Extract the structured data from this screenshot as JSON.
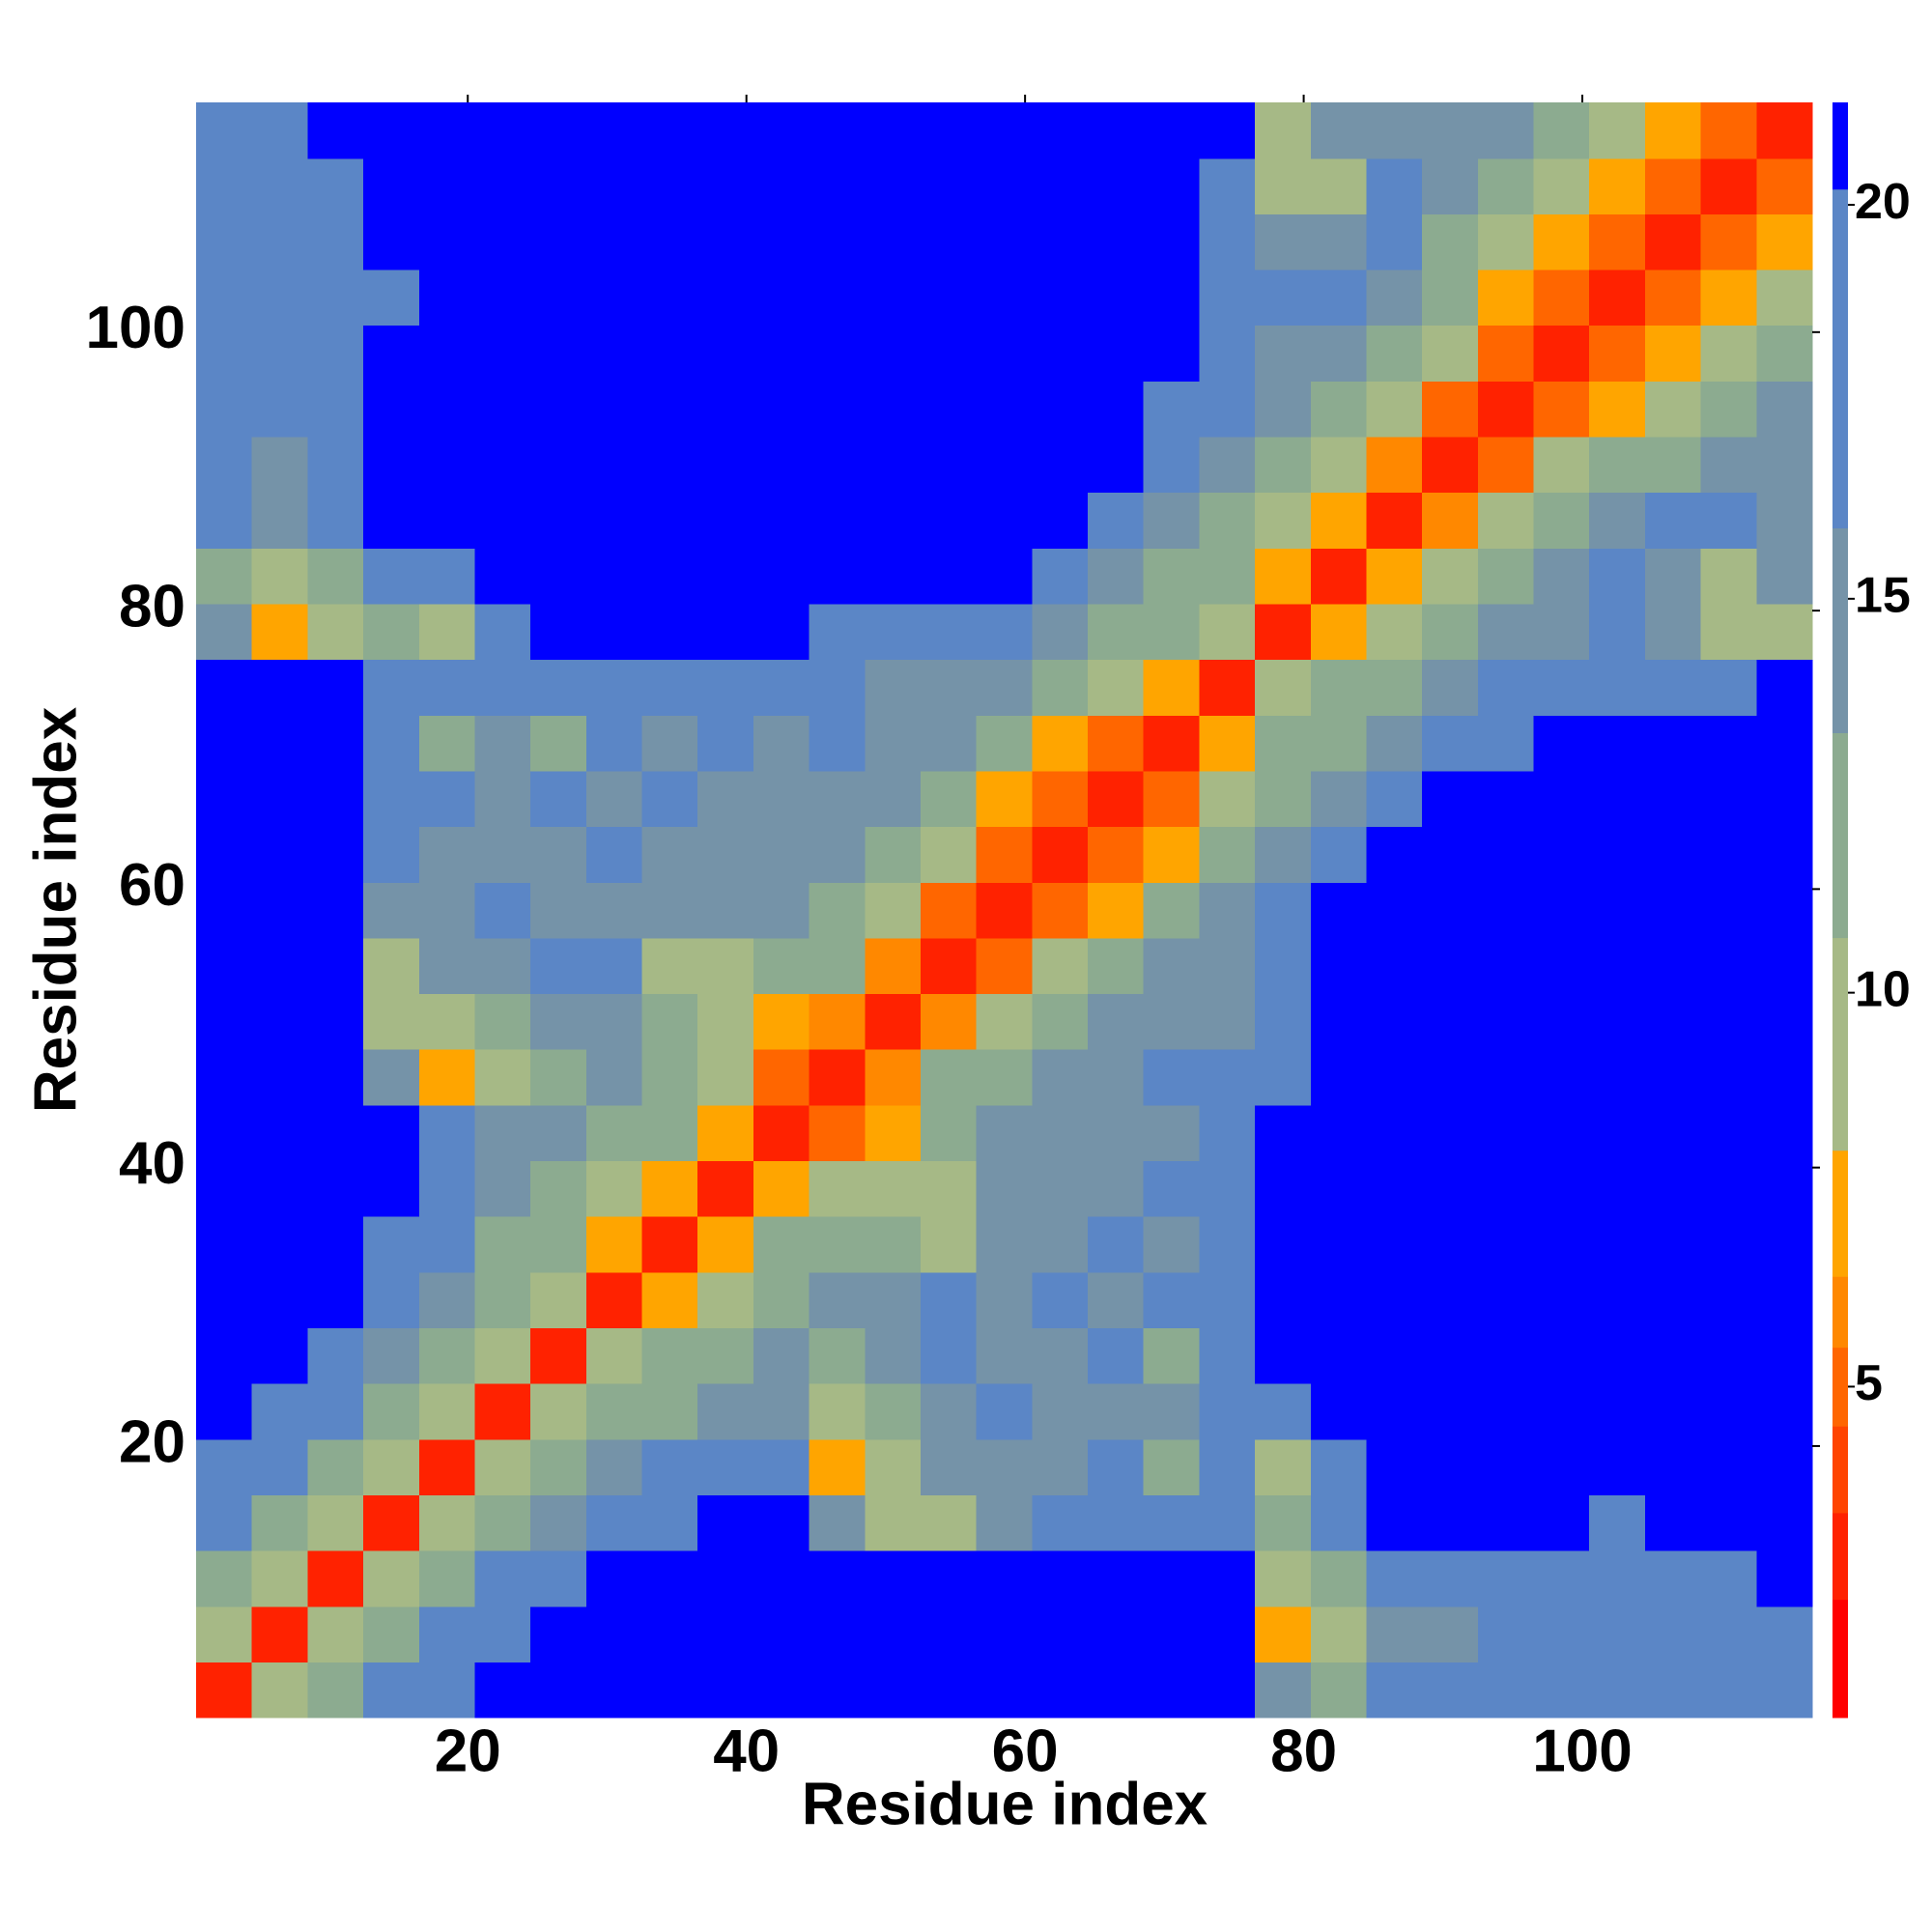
{
  "chart_data": {
    "type": "heatmap",
    "xlabel": "Residue index",
    "ylabel": "Residue index",
    "x": [
      2.5,
      6.5,
      10.5,
      14.5,
      18.5,
      22.5,
      26.5,
      30.5,
      34.5,
      38.5,
      42.5,
      46.5,
      50.5,
      54.5,
      58.5,
      62.5,
      66.5,
      70.5,
      74.5,
      78.5,
      82.5,
      86.5,
      90.5,
      94.5,
      98.5,
      102.5,
      106.5,
      110.5,
      114.5
    ],
    "y": [
      2.5,
      6.5,
      10.5,
      14.5,
      18.5,
      22.5,
      26.5,
      30.5,
      34.5,
      38.5,
      42.5,
      46.5,
      50.5,
      54.5,
      58.5,
      62.5,
      66.5,
      70.5,
      74.5,
      78.5,
      82.5,
      86.5,
      90.5,
      94.5,
      98.5,
      102.5,
      106.5,
      110.5,
      114.5
    ],
    "z": [
      [
        3,
        9,
        13,
        16,
        18,
        21,
        21,
        21,
        21,
        21,
        21,
        21,
        21,
        21,
        21,
        21,
        21,
        21,
        21,
        15,
        12,
        16,
        16,
        16,
        16,
        16,
        18,
        18,
        18
      ],
      [
        9,
        3,
        9,
        13,
        16,
        18,
        21,
        21,
        21,
        21,
        21,
        21,
        21,
        21,
        21,
        21,
        21,
        21,
        21,
        7,
        8,
        15,
        15,
        16,
        16,
        18,
        16,
        18,
        18
      ],
      [
        13,
        9,
        3,
        9,
        13,
        16,
        18,
        21,
        21,
        21,
        21,
        21,
        21,
        21,
        21,
        21,
        21,
        21,
        21,
        8,
        12,
        18,
        18,
        18,
        18,
        16,
        18,
        18,
        21
      ],
      [
        16,
        13,
        9,
        3,
        9,
        12,
        15,
        16,
        18,
        21,
        21,
        15,
        8,
        10,
        15,
        16,
        18,
        18,
        16,
        12,
        16,
        21,
        21,
        21,
        21,
        18,
        21,
        21,
        21
      ],
      [
        18,
        16,
        13,
        9,
        3,
        9,
        12,
        15,
        16,
        18,
        16,
        7,
        8,
        15,
        15,
        15,
        16,
        12,
        16,
        9,
        18,
        21,
        21,
        21,
        21,
        21,
        21,
        21,
        21
      ],
      [
        21,
        18,
        16,
        12,
        9,
        3,
        9,
        11,
        13,
        15,
        15,
        8,
        12,
        15,
        16,
        15,
        15,
        15,
        16,
        18,
        21,
        21,
        21,
        21,
        21,
        21,
        21,
        21,
        21
      ],
      [
        21,
        21,
        18,
        15,
        12,
        9,
        3,
        8,
        11,
        13,
        15,
        12,
        15,
        18,
        15,
        15,
        16,
        12,
        16,
        21,
        21,
        21,
        21,
        21,
        21,
        21,
        21,
        21,
        21
      ],
      [
        21,
        21,
        21,
        16,
        15,
        11,
        8,
        3,
        7,
        10,
        13,
        15,
        15,
        16,
        15,
        16,
        15,
        16,
        18,
        21,
        21,
        21,
        21,
        21,
        21,
        21,
        21,
        21,
        21
      ],
      [
        21,
        21,
        21,
        18,
        16,
        13,
        11,
        7,
        3,
        7,
        11,
        13,
        13,
        10,
        15,
        15,
        16,
        15,
        18,
        21,
        21,
        21,
        21,
        21,
        21,
        21,
        21,
        21,
        21
      ],
      [
        21,
        21,
        21,
        21,
        18,
        15,
        13,
        10,
        7,
        3,
        7,
        10,
        9,
        8,
        15,
        15,
        15,
        16,
        18,
        21,
        21,
        21,
        21,
        21,
        21,
        21,
        21,
        21,
        21
      ],
      [
        21,
        21,
        21,
        21,
        16,
        15,
        15,
        13,
        11,
        7,
        3,
        5,
        7,
        12,
        15,
        15,
        15,
        15,
        16,
        21,
        21,
        21,
        21,
        21,
        21,
        21,
        21,
        21,
        21
      ],
      [
        21,
        21,
        21,
        15,
        7,
        8,
        12,
        15,
        13,
        10,
        5,
        3,
        6,
        11,
        13,
        15,
        15,
        16,
        16,
        18,
        21,
        21,
        21,
        21,
        21,
        21,
        21,
        21,
        21
      ],
      [
        21,
        21,
        21,
        8,
        8,
        12,
        15,
        15,
        13,
        9,
        7,
        6,
        3,
        6,
        9,
        12,
        15,
        15,
        15,
        18,
        21,
        21,
        21,
        21,
        21,
        21,
        21,
        21,
        21
      ],
      [
        21,
        21,
        21,
        10,
        15,
        15,
        18,
        16,
        10,
        8,
        12,
        11,
        6,
        3,
        5,
        8,
        12,
        15,
        15,
        18,
        21,
        21,
        21,
        21,
        21,
        21,
        21,
        21,
        21
      ],
      [
        21,
        21,
        21,
        15,
        15,
        16,
        15,
        15,
        15,
        15,
        15,
        13,
        9,
        5,
        3,
        5,
        7,
        11,
        15,
        16,
        21,
        21,
        21,
        21,
        21,
        21,
        21,
        21,
        21
      ],
      [
        21,
        21,
        21,
        16,
        15,
        15,
        15,
        16,
        15,
        15,
        15,
        15,
        12,
        8,
        5,
        3,
        5,
        7,
        12,
        15,
        16,
        21,
        21,
        21,
        21,
        21,
        21,
        21,
        21
      ],
      [
        21,
        21,
        21,
        18,
        16,
        15,
        16,
        15,
        16,
        15,
        15,
        15,
        15,
        12,
        7,
        5,
        3,
        5,
        10,
        13,
        15,
        16,
        21,
        21,
        21,
        21,
        21,
        21,
        21
      ],
      [
        21,
        21,
        21,
        18,
        12,
        15,
        12,
        16,
        15,
        16,
        15,
        16,
        15,
        15,
        11,
        7,
        5,
        3,
        7,
        11,
        13,
        15,
        16,
        18,
        21,
        21,
        21,
        21,
        21
      ],
      [
        21,
        21,
        21,
        16,
        16,
        16,
        16,
        18,
        18,
        18,
        16,
        16,
        15,
        15,
        15,
        12,
        10,
        7,
        3,
        8,
        11,
        13,
        15,
        16,
        18,
        18,
        18,
        18,
        21
      ],
      [
        15,
        7,
        8,
        12,
        9,
        18,
        21,
        21,
        21,
        21,
        21,
        18,
        18,
        18,
        16,
        15,
        13,
        11,
        8,
        3,
        7,
        10,
        12,
        15,
        15,
        16,
        15,
        8,
        10
      ],
      [
        12,
        8,
        12,
        16,
        18,
        21,
        21,
        21,
        21,
        21,
        21,
        21,
        21,
        21,
        21,
        16,
        15,
        13,
        11,
        7,
        3,
        7,
        9,
        12,
        15,
        16,
        15,
        10,
        15
      ],
      [
        16,
        15,
        18,
        21,
        21,
        21,
        21,
        21,
        21,
        21,
        21,
        21,
        21,
        21,
        21,
        21,
        16,
        15,
        13,
        10,
        7,
        3,
        6,
        10,
        13,
        15,
        16,
        16,
        15
      ],
      [
        16,
        15,
        18,
        21,
        21,
        21,
        21,
        21,
        21,
        21,
        21,
        21,
        21,
        21,
        21,
        21,
        21,
        16,
        15,
        12,
        9,
        6,
        3,
        5,
        8,
        11,
        13,
        15,
        15
      ],
      [
        16,
        16,
        18,
        21,
        21,
        21,
        21,
        21,
        21,
        21,
        21,
        21,
        21,
        21,
        21,
        21,
        21,
        18,
        16,
        15,
        12,
        10,
        5,
        3,
        5,
        7,
        10,
        13,
        15
      ],
      [
        16,
        16,
        18,
        21,
        21,
        21,
        21,
        21,
        21,
        21,
        21,
        21,
        21,
        21,
        21,
        21,
        21,
        21,
        18,
        15,
        15,
        13,
        8,
        5,
        3,
        5,
        7,
        10,
        12
      ],
      [
        16,
        18,
        16,
        18,
        21,
        21,
        21,
        21,
        21,
        21,
        21,
        21,
        21,
        21,
        21,
        21,
        21,
        21,
        18,
        16,
        16,
        15,
        11,
        7,
        5,
        3,
        5,
        7,
        10
      ],
      [
        18,
        16,
        18,
        21,
        21,
        21,
        21,
        21,
        21,
        21,
        21,
        21,
        21,
        21,
        21,
        21,
        21,
        21,
        18,
        15,
        15,
        16,
        13,
        10,
        7,
        5,
        3,
        5,
        7
      ],
      [
        18,
        18,
        18,
        21,
        21,
        21,
        21,
        21,
        21,
        21,
        21,
        21,
        21,
        21,
        21,
        21,
        21,
        21,
        18,
        8,
        10,
        16,
        15,
        13,
        10,
        7,
        5,
        3,
        5
      ],
      [
        18,
        18,
        21,
        21,
        21,
        21,
        21,
        21,
        21,
        21,
        21,
        21,
        21,
        21,
        21,
        21,
        21,
        21,
        21,
        10,
        15,
        15,
        15,
        15,
        12,
        10,
        7,
        5,
        3
      ]
    ],
    "xlim": [
      0.5,
      116.5
    ],
    "ylim": [
      0.5,
      116.5
    ],
    "xticks": [
      20,
      40,
      60,
      80,
      100
    ],
    "yticks": [
      20,
      40,
      60,
      80,
      100
    ],
    "colorbar": {
      "ticks": [
        5,
        10,
        15,
        20
      ],
      "levels": [
        0.8,
        2.3,
        3.4,
        4.5,
        5.5,
        6.4,
        8.0,
        10.7,
        13.3,
        15.9,
        20.2,
        21.3
      ],
      "colors": [
        "#ff0000",
        "#ff2200",
        "#ff4400",
        "#ff6600",
        "#ff8800",
        "#ffa500",
        "#a6b986",
        "#8cab90",
        "#7593a8",
        "#5b86c6",
        "#0000ff"
      ]
    }
  }
}
